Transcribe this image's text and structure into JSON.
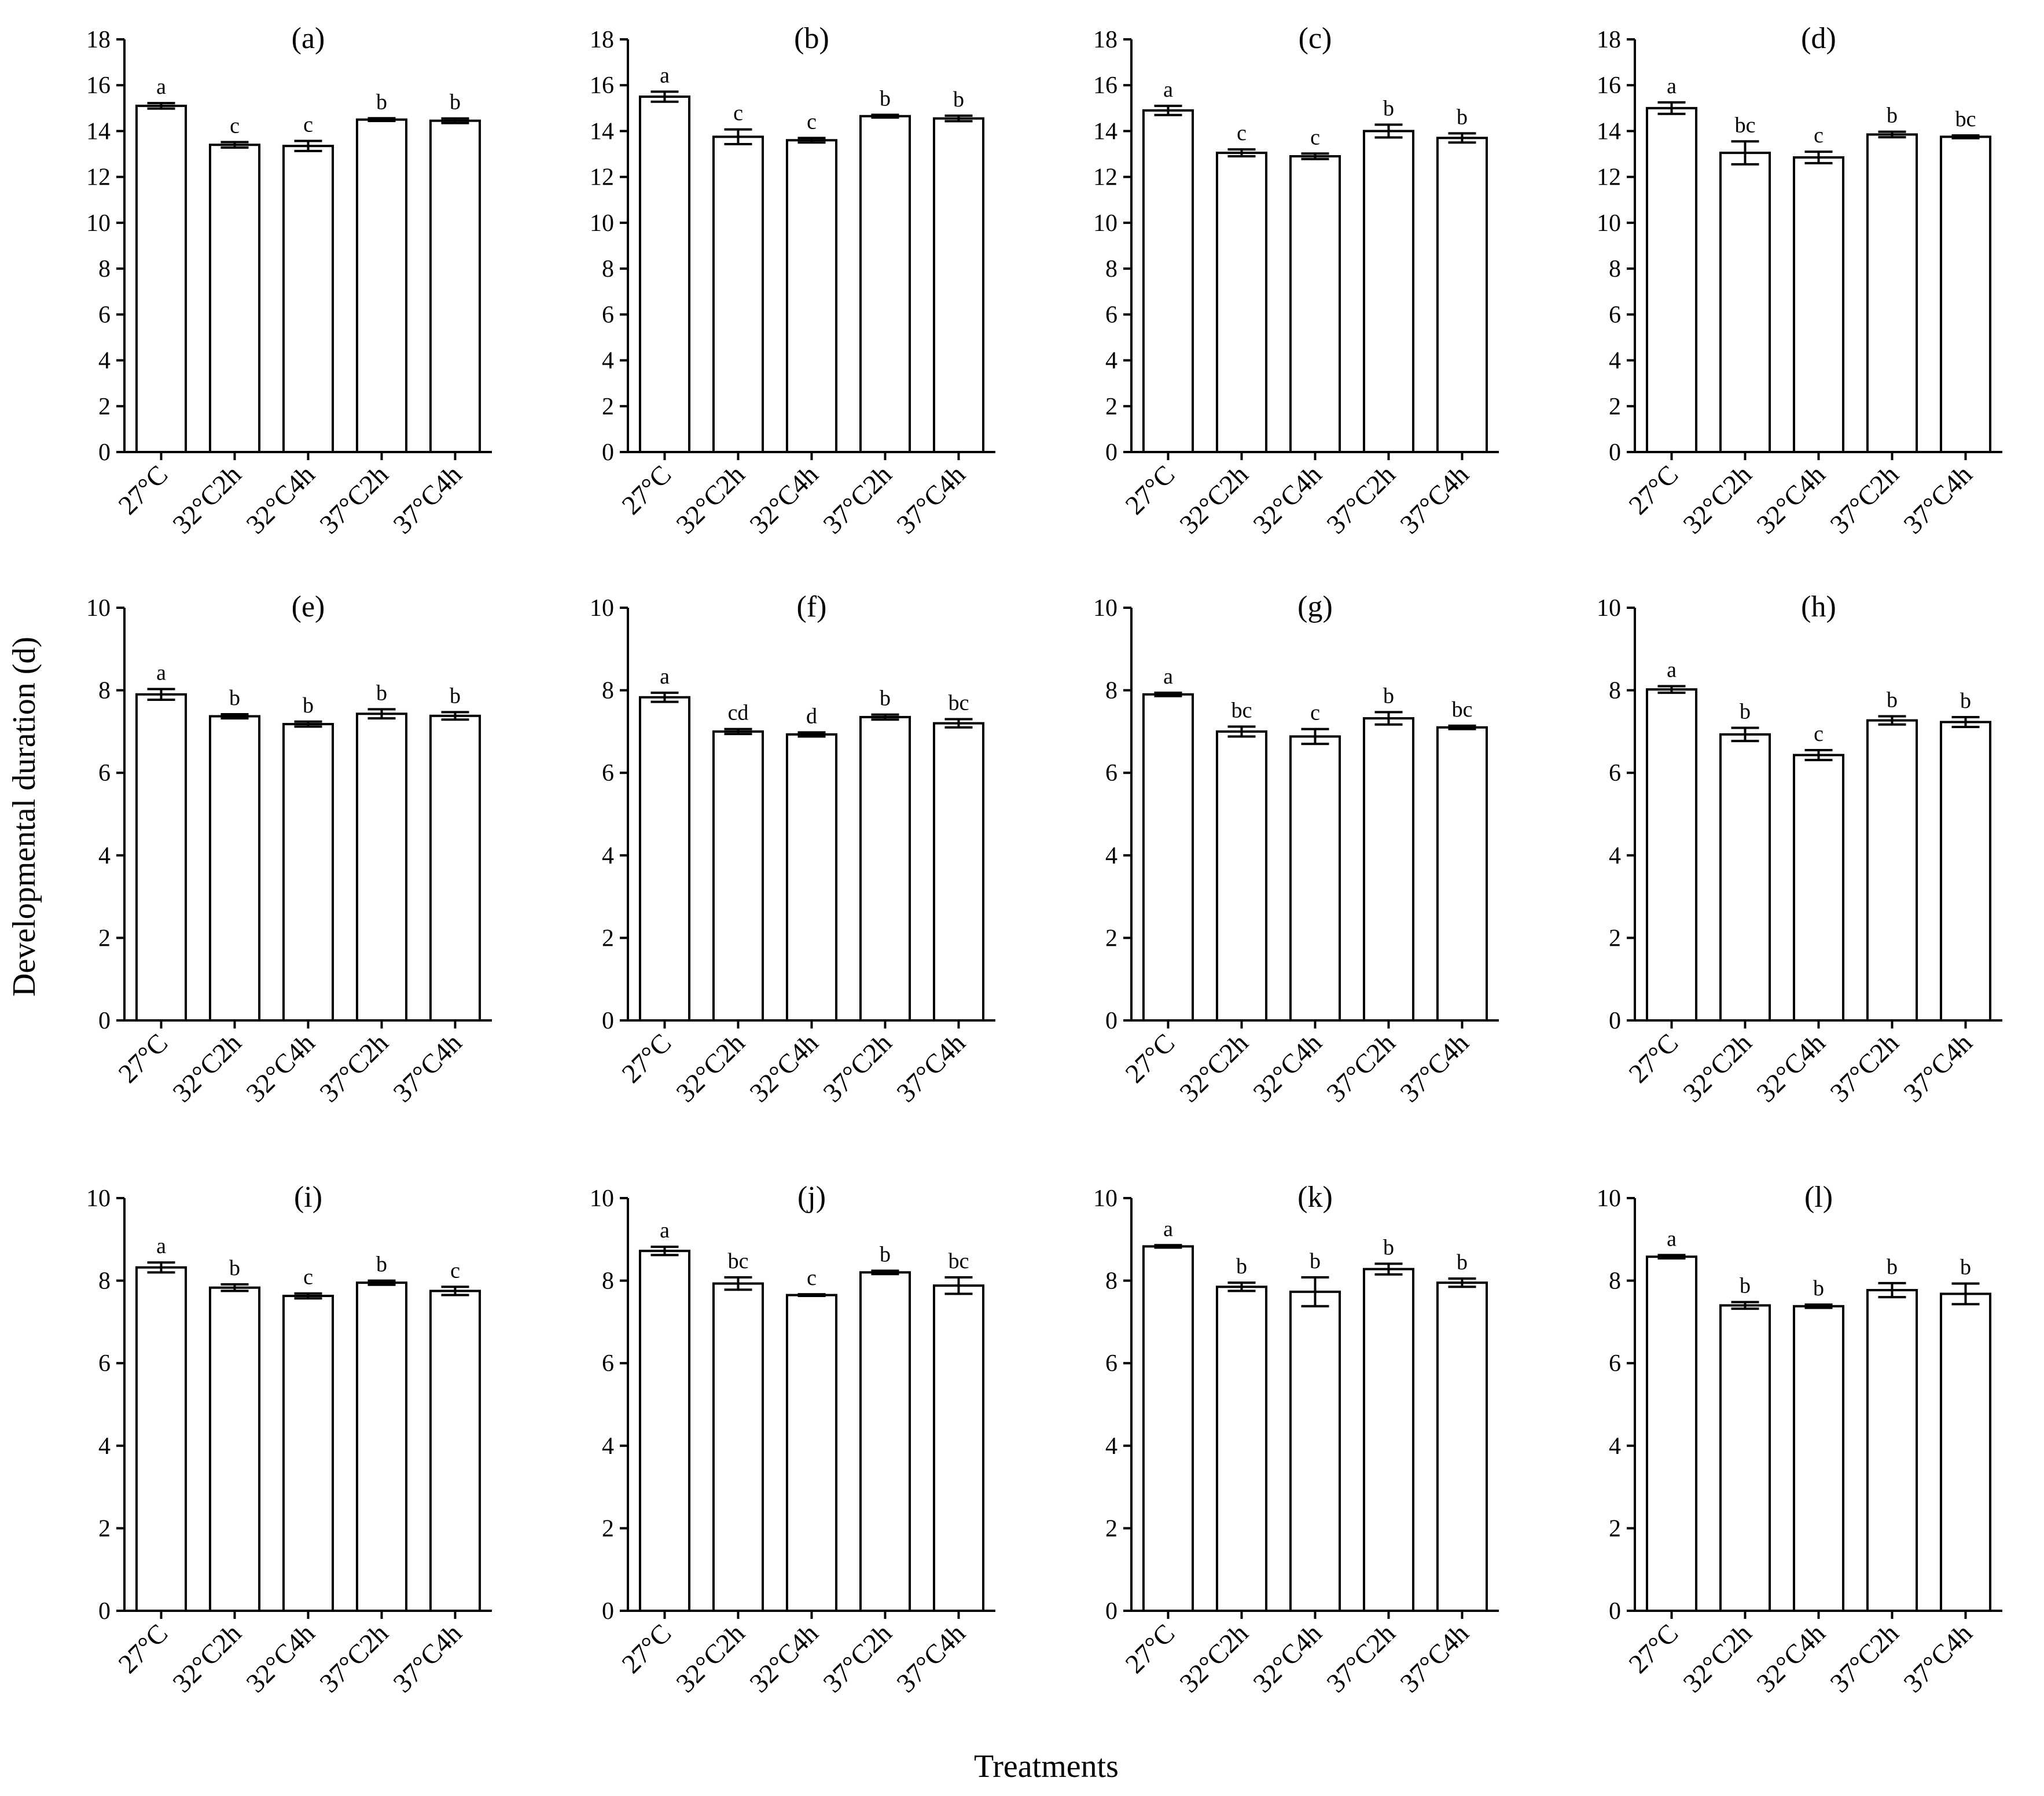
{
  "figure": {
    "ylabel": "Developmental duration (d)",
    "xlabel": "Treatments"
  },
  "chart_data": [
    {
      "type": "bar",
      "title": "(a)",
      "categories": [
        "27°C",
        "32°C2h",
        "32°C4h",
        "37°C2h",
        "37°C4h"
      ],
      "values": [
        15.1,
        13.4,
        13.35,
        14.5,
        14.45
      ],
      "errors": [
        0.12,
        0.12,
        0.22,
        0.06,
        0.1
      ],
      "letters": [
        "a",
        "c",
        "c",
        "b",
        "b"
      ],
      "ylim": [
        0,
        18
      ],
      "yticks": [
        0,
        2,
        4,
        6,
        8,
        10,
        12,
        14,
        16,
        18
      ]
    },
    {
      "type": "bar",
      "title": "(b)",
      "categories": [
        "27°C",
        "32°C2h",
        "32°C4h",
        "37°C2h",
        "37°C4h"
      ],
      "values": [
        15.5,
        13.75,
        13.6,
        14.65,
        14.55
      ],
      "errors": [
        0.22,
        0.32,
        0.1,
        0.06,
        0.12
      ],
      "letters": [
        "a",
        "c",
        "c",
        "b",
        "b"
      ],
      "ylim": [
        0,
        18
      ],
      "yticks": [
        0,
        2,
        4,
        6,
        8,
        10,
        12,
        14,
        16,
        18
      ]
    },
    {
      "type": "bar",
      "title": "(c)",
      "categories": [
        "27°C",
        "32°C2h",
        "32°C4h",
        "37°C2h",
        "37°C4h"
      ],
      "values": [
        14.9,
        13.05,
        12.9,
        14.0,
        13.7
      ],
      "errors": [
        0.2,
        0.15,
        0.12,
        0.28,
        0.2
      ],
      "letters": [
        "a",
        "c",
        "c",
        "b",
        "b"
      ],
      "ylim": [
        0,
        18
      ],
      "yticks": [
        0,
        2,
        4,
        6,
        8,
        10,
        12,
        14,
        16,
        18
      ]
    },
    {
      "type": "bar",
      "title": "(d)",
      "categories": [
        "27°C",
        "32°C2h",
        "32°C4h",
        "37°C2h",
        "37°C4h"
      ],
      "values": [
        15.0,
        13.05,
        12.85,
        13.85,
        13.75
      ],
      "errors": [
        0.25,
        0.5,
        0.25,
        0.12,
        0.06
      ],
      "letters": [
        "a",
        "bc",
        "c",
        "b",
        "bc"
      ],
      "ylim": [
        0,
        18
      ],
      "yticks": [
        0,
        2,
        4,
        6,
        8,
        10,
        12,
        14,
        16,
        18
      ]
    },
    {
      "type": "bar",
      "title": "(e)",
      "categories": [
        "27°C",
        "32°C2h",
        "32°C4h",
        "37°C2h",
        "37°C4h"
      ],
      "values": [
        7.9,
        7.37,
        7.18,
        7.43,
        7.38
      ],
      "errors": [
        0.13,
        0.05,
        0.06,
        0.11,
        0.09
      ],
      "letters": [
        "a",
        "b",
        "b",
        "b",
        "b"
      ],
      "ylim": [
        0,
        10
      ],
      "yticks": [
        0,
        2,
        4,
        6,
        8,
        10
      ]
    },
    {
      "type": "bar",
      "title": "(f)",
      "categories": [
        "27°C",
        "32°C2h",
        "32°C4h",
        "37°C2h",
        "37°C4h"
      ],
      "values": [
        7.83,
        7.0,
        6.93,
        7.35,
        7.2
      ],
      "errors": [
        0.11,
        0.06,
        0.05,
        0.06,
        0.1
      ],
      "letters": [
        "a",
        "cd",
        "d",
        "b",
        "bc"
      ],
      "ylim": [
        0,
        10
      ],
      "yticks": [
        0,
        2,
        4,
        6,
        8,
        10
      ]
    },
    {
      "type": "bar",
      "title": "(g)",
      "categories": [
        "27°C",
        "32°C2h",
        "32°C4h",
        "37°C2h",
        "37°C4h"
      ],
      "values": [
        7.9,
        7.0,
        6.88,
        7.32,
        7.1
      ],
      "errors": [
        0.04,
        0.12,
        0.18,
        0.15,
        0.04
      ],
      "letters": [
        "a",
        "bc",
        "c",
        "b",
        "bc"
      ],
      "ylim": [
        0,
        10
      ],
      "yticks": [
        0,
        2,
        4,
        6,
        8,
        10
      ]
    },
    {
      "type": "bar",
      "title": "(h)",
      "categories": [
        "27°C",
        "32°C2h",
        "32°C4h",
        "37°C2h",
        "37°C4h"
      ],
      "values": [
        8.02,
        6.93,
        6.43,
        7.27,
        7.23
      ],
      "errors": [
        0.08,
        0.16,
        0.12,
        0.1,
        0.12
      ],
      "letters": [
        "a",
        "b",
        "c",
        "b",
        "b"
      ],
      "ylim": [
        0,
        10
      ],
      "yticks": [
        0,
        2,
        4,
        6,
        8,
        10
      ]
    },
    {
      "type": "bar",
      "title": "(i)",
      "categories": [
        "27°C",
        "32°C2h",
        "32°C4h",
        "37°C2h",
        "37°C4h"
      ],
      "values": [
        8.32,
        7.83,
        7.63,
        7.95,
        7.75
      ],
      "errors": [
        0.12,
        0.08,
        0.06,
        0.05,
        0.1
      ],
      "letters": [
        "a",
        "b",
        "c",
        "b",
        "c"
      ],
      "ylim": [
        0,
        10
      ],
      "yticks": [
        0,
        2,
        4,
        6,
        8,
        10
      ]
    },
    {
      "type": "bar",
      "title": "(j)",
      "categories": [
        "27°C",
        "32°C2h",
        "32°C4h",
        "37°C2h",
        "37°C4h"
      ],
      "values": [
        8.72,
        7.93,
        7.65,
        8.2,
        7.88
      ],
      "errors": [
        0.1,
        0.15,
        0.02,
        0.04,
        0.2
      ],
      "letters": [
        "a",
        "bc",
        "c",
        "b",
        "bc"
      ],
      "ylim": [
        0,
        10
      ],
      "yticks": [
        0,
        2,
        4,
        6,
        8,
        10
      ]
    },
    {
      "type": "bar",
      "title": "(k)",
      "categories": [
        "27°C",
        "32°C2h",
        "32°C4h",
        "37°C2h",
        "37°C4h"
      ],
      "values": [
        8.83,
        7.85,
        7.73,
        8.28,
        7.95
      ],
      "errors": [
        0.03,
        0.1,
        0.35,
        0.13,
        0.1
      ],
      "letters": [
        "a",
        "b",
        "b",
        "b",
        "b"
      ],
      "ylim": [
        0,
        10
      ],
      "yticks": [
        0,
        2,
        4,
        6,
        8,
        10
      ]
    },
    {
      "type": "bar",
      "title": "(l)",
      "categories": [
        "27°C",
        "32°C2h",
        "32°C4h",
        "37°C2h",
        "37°C4h"
      ],
      "values": [
        8.58,
        7.4,
        7.38,
        7.77,
        7.68
      ],
      "errors": [
        0.04,
        0.08,
        0.04,
        0.17,
        0.25
      ],
      "letters": [
        "a",
        "b",
        "b",
        "b",
        "b"
      ],
      "ylim": [
        0,
        10
      ],
      "yticks": [
        0,
        2,
        4,
        6,
        8,
        10
      ]
    }
  ]
}
